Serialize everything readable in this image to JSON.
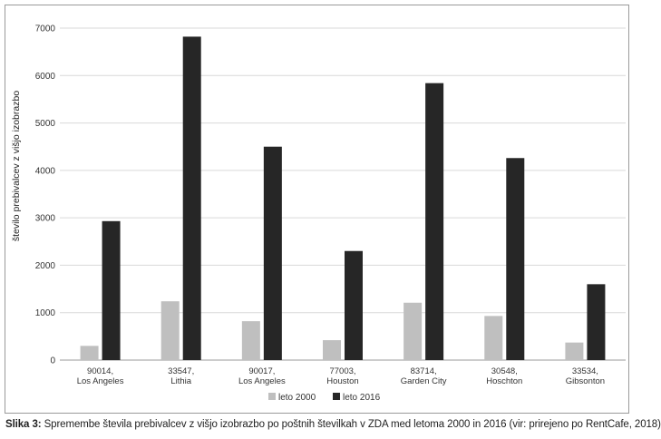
{
  "chart_data": {
    "type": "bar",
    "title": "",
    "xlabel": "",
    "ylabel": "število prebivalcev z višjo izobrazbo",
    "ylim": [
      0,
      7000
    ],
    "yticks": [
      0,
      1000,
      2000,
      3000,
      4000,
      5000,
      6000,
      7000
    ],
    "grid": true,
    "legend_position": "bottom",
    "categories": [
      [
        "90014,",
        "Los Angeles"
      ],
      [
        "33547,",
        "Lithia"
      ],
      [
        "90017,",
        "Los Angeles"
      ],
      [
        "77003,",
        "Houston"
      ],
      [
        "83714,",
        "Garden City"
      ],
      [
        "30548,",
        "Hoschton"
      ],
      [
        "33534,",
        "Gibsonton"
      ]
    ],
    "series": [
      {
        "name": "leto 2000",
        "color": "#bfbfbf",
        "values": [
          300,
          1240,
          820,
          420,
          1210,
          930,
          370
        ]
      },
      {
        "name": "leto 2016",
        "color": "#262626",
        "values": [
          2930,
          6820,
          4500,
          2300,
          5840,
          4260,
          1600
        ]
      }
    ]
  },
  "caption": {
    "label": "Slika 3:",
    "text": " Spremembe števila prebivalcev z višjo izobrazbo po poštnih številkah v ZDA med letoma 2000 in 2016 (vir: prirejeno po RentCafe, 2018)"
  }
}
